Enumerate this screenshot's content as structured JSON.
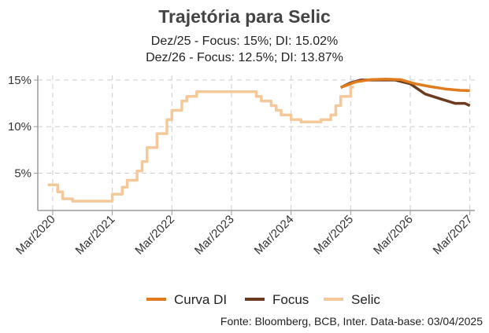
{
  "chart_data": {
    "type": "line",
    "title": "Trajetória para Selic",
    "subtitle_lines": [
      "Dez/25 - Focus: 15%; DI: 15.02%",
      "Dez/26 - Focus: 12.5%; DI: 13.87%"
    ],
    "y_ticks": [
      "5%",
      "10%",
      "15%"
    ],
    "x_ticks": [
      "Mar/2020",
      "Mar/2021",
      "Mar/2022",
      "Mar/2023",
      "Mar/2024",
      "Mar/2025",
      "Mar/2026",
      "Mar/2027"
    ],
    "ylim": [
      1.0,
      15.5
    ],
    "xlim": [
      "2019-12",
      "2027-04"
    ],
    "grid": true,
    "legend_position": "bottom",
    "series": [
      {
        "name": "Curva DI",
        "color": "#E07B1E",
        "points": [
          [
            "2025-01",
            14.2
          ],
          [
            "2025-04",
            14.8
          ],
          [
            "2025-07",
            15.05
          ],
          [
            "2025-10",
            15.1
          ],
          [
            "2026-01",
            15.05
          ],
          [
            "2026-04",
            14.6
          ],
          [
            "2026-07",
            14.3
          ],
          [
            "2026-10",
            14.05
          ],
          [
            "2027-01",
            13.9
          ],
          [
            "2027-03",
            13.87
          ]
        ]
      },
      {
        "name": "Focus",
        "color": "#6B3A1F",
        "points": [
          [
            "2025-01",
            14.2
          ],
          [
            "2025-03",
            14.7
          ],
          [
            "2025-05",
            15.0
          ],
          [
            "2025-07",
            15.0
          ],
          [
            "2025-12",
            15.0
          ],
          [
            "2026-03",
            14.6
          ],
          [
            "2026-06",
            13.5
          ],
          [
            "2026-09",
            13.0
          ],
          [
            "2026-12",
            12.5
          ],
          [
            "2027-02",
            12.5
          ],
          [
            "2027-03",
            12.25
          ]
        ]
      },
      {
        "name": "Selic",
        "color": "#F5C89A",
        "points": [
          [
            "2020-02",
            3.75
          ],
          [
            "2020-04",
            3.0
          ],
          [
            "2020-05",
            2.25
          ],
          [
            "2020-07",
            2.0
          ],
          [
            "2021-03",
            2.75
          ],
          [
            "2021-05",
            3.5
          ],
          [
            "2021-06",
            4.25
          ],
          [
            "2021-08",
            5.25
          ],
          [
            "2021-09",
            6.25
          ],
          [
            "2021-10",
            7.75
          ],
          [
            "2021-12",
            9.25
          ],
          [
            "2022-02",
            10.75
          ],
          [
            "2022-03",
            11.75
          ],
          [
            "2022-05",
            12.75
          ],
          [
            "2022-06",
            13.25
          ],
          [
            "2022-08",
            13.75
          ],
          [
            "2023-08",
            13.25
          ],
          [
            "2023-09",
            12.75
          ],
          [
            "2023-11",
            12.25
          ],
          [
            "2023-12",
            11.75
          ],
          [
            "2024-01",
            11.25
          ],
          [
            "2024-03",
            10.75
          ],
          [
            "2024-05",
            10.5
          ],
          [
            "2024-09",
            10.75
          ],
          [
            "2024-11",
            11.25
          ],
          [
            "2024-12",
            12.25
          ],
          [
            "2025-01",
            13.25
          ],
          [
            "2025-03",
            14.25
          ]
        ]
      }
    ],
    "source": "Fonte: Bloomberg, BCB, Inter. Data-base: 03/04/2025"
  }
}
